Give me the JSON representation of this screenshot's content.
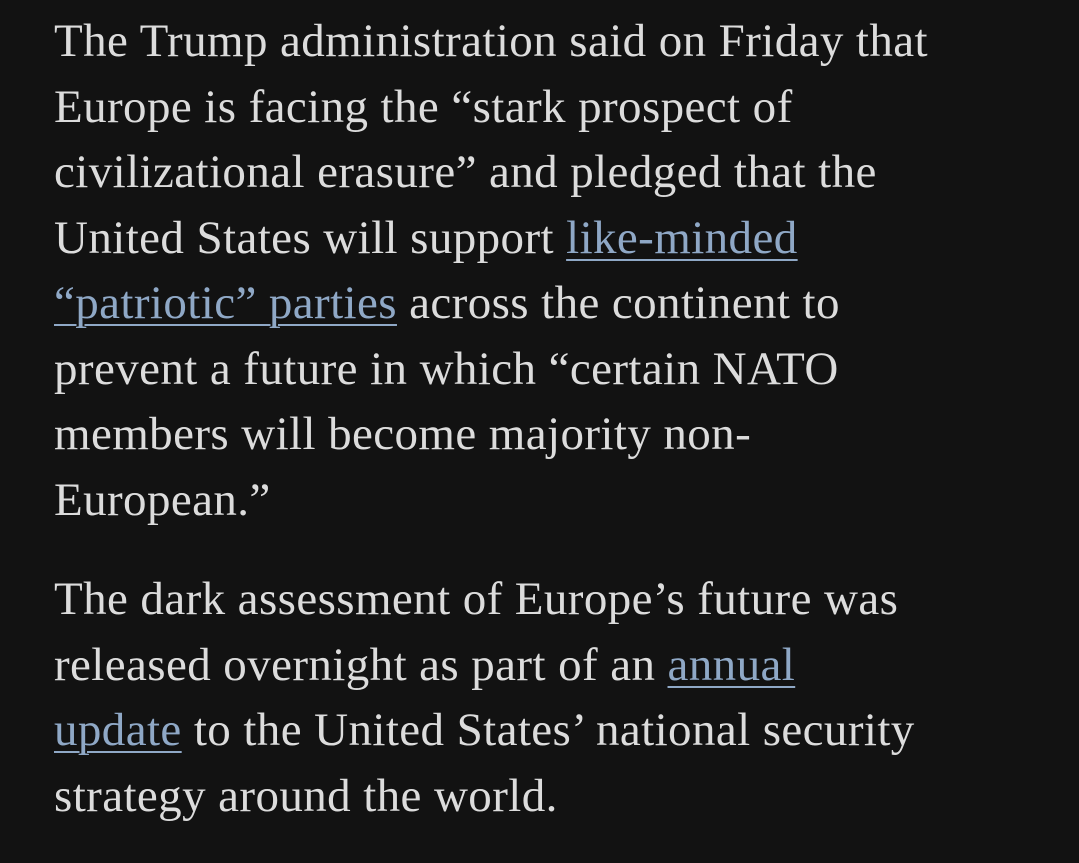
{
  "article": {
    "paragraphs": [
      {
        "lines": [
          [
            {
              "text": "The Trump administration said on Friday that"
            }
          ],
          [
            {
              "text": "Europe is facing the “stark prospect of"
            }
          ],
          [
            {
              "text": "civilizational erasure” and pledged that the"
            }
          ],
          [
            {
              "text": "United States will support "
            },
            {
              "link": "like-minded"
            }
          ],
          [
            {
              "link": "“patriotic” parties"
            },
            {
              "text": " across the continent to"
            }
          ],
          [
            {
              "text": "prevent a future in which “certain NATO"
            }
          ],
          [
            {
              "text": "members will become majority non-"
            }
          ],
          [
            {
              "text": "European.”"
            }
          ]
        ]
      },
      {
        "lines": [
          [
            {
              "text": "The dark assessment of Europe’s future was"
            }
          ],
          [
            {
              "text": "released overnight as part of an "
            },
            {
              "link": "annual"
            }
          ],
          [
            {
              "link": "update"
            },
            {
              "text": " to the United States’ national security"
            }
          ],
          [
            {
              "text": "strategy around the world."
            }
          ]
        ]
      }
    ]
  }
}
